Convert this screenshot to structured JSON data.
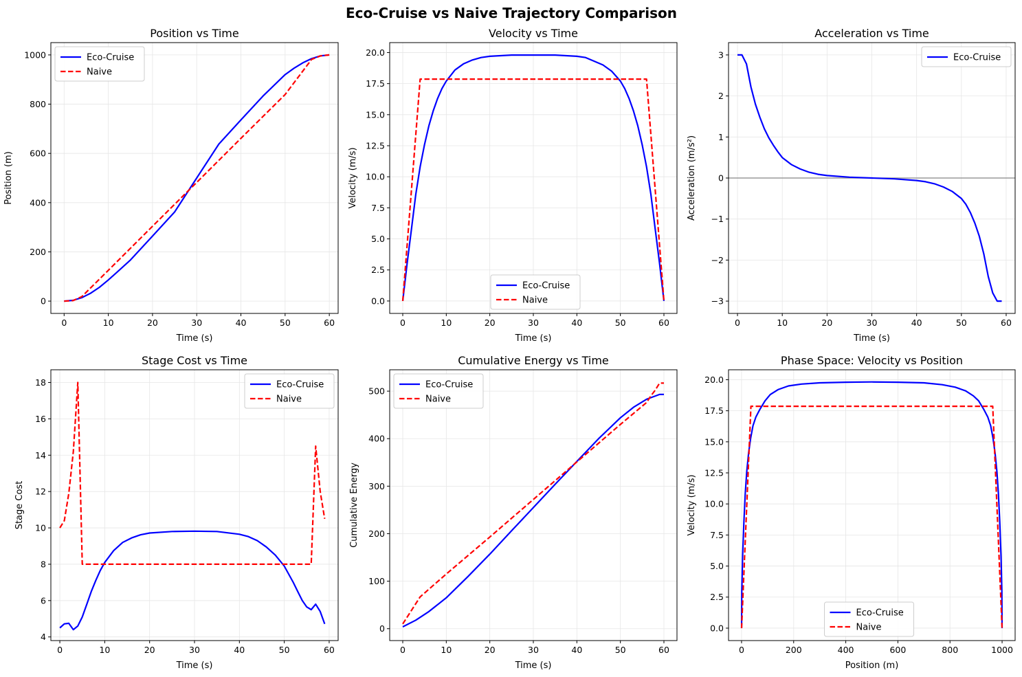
{
  "suptitle": "Eco-Cruise vs Naive Trajectory Comparison",
  "colors": {
    "eco": "#0000ff",
    "naive": "#ff0000",
    "grid": "#e6e6e6",
    "zero_line": "#999999"
  },
  "chart_data": [
    {
      "type": "line",
      "title": "Position vs Time",
      "xlabel": "Time (s)",
      "ylabel": "Position (m)",
      "xlim": [
        -3,
        62
      ],
      "ylim": [
        -50,
        1050
      ],
      "xticks": [
        0,
        10,
        20,
        30,
        40,
        50,
        60
      ],
      "yticks": [
        0,
        200,
        400,
        600,
        800,
        1000
      ],
      "grid": true,
      "legend": "upper left",
      "series": [
        {
          "name": "Eco-Cruise",
          "style": "solid",
          "color": "#0000ff",
          "x": [
            0,
            2,
            4,
            6,
            8,
            10,
            12,
            15,
            20,
            25,
            30,
            35,
            40,
            45,
            50,
            52,
            54,
            56,
            58,
            60
          ],
          "y": [
            0,
            3,
            14,
            32,
            56,
            86,
            118,
            167,
            264,
            362,
            500,
            638,
            736,
            833,
            920,
            946,
            968,
            985,
            996,
            1000
          ]
        },
        {
          "name": "Naive",
          "style": "dashed",
          "color": "#ff0000",
          "x": [
            0,
            2,
            4,
            10,
            20,
            30,
            40,
            50,
            56,
            58,
            60
          ],
          "y": [
            0,
            2,
            18,
            125,
            304,
            482,
            661,
            839,
            982,
            996,
            1000
          ]
        }
      ]
    },
    {
      "type": "line",
      "title": "Velocity vs Time",
      "xlabel": "Time (s)",
      "ylabel": "Velocity (m/s)",
      "xlim": [
        -3,
        63
      ],
      "ylim": [
        -1,
        20.8
      ],
      "xticks": [
        0,
        10,
        20,
        30,
        40,
        50,
        60
      ],
      "yticks": [
        0.0,
        2.5,
        5.0,
        7.5,
        10.0,
        12.5,
        15.0,
        17.5,
        20.0
      ],
      "ytick_labels": [
        "0.0",
        "2.5",
        "5.0",
        "7.5",
        "10.0",
        "12.5",
        "15.0",
        "17.5",
        "20.0"
      ],
      "grid": true,
      "legend": "lower center",
      "series": [
        {
          "name": "Eco-Cruise",
          "style": "solid",
          "color": "#0000ff",
          "x": [
            0,
            1,
            2,
            3,
            4,
            5,
            6,
            7,
            8,
            9,
            10,
            12,
            14,
            16,
            18,
            20,
            25,
            30,
            35,
            40,
            42,
            44,
            46,
            48,
            50,
            51,
            52,
            53,
            54,
            55,
            56,
            57,
            58,
            59,
            60
          ],
          "y": [
            0,
            3.0,
            5.8,
            8.6,
            10.8,
            12.6,
            14.1,
            15.3,
            16.3,
            17.1,
            17.7,
            18.6,
            19.1,
            19.4,
            19.6,
            19.7,
            19.8,
            19.8,
            19.8,
            19.7,
            19.6,
            19.3,
            19.0,
            18.5,
            17.7,
            17.1,
            16.3,
            15.3,
            14.1,
            12.6,
            10.8,
            8.6,
            5.8,
            3.0,
            0
          ]
        },
        {
          "name": "Naive",
          "style": "dashed",
          "color": "#ff0000",
          "x": [
            0,
            4,
            56,
            60
          ],
          "y": [
            0,
            17.86,
            17.86,
            0
          ]
        }
      ]
    },
    {
      "type": "line",
      "title": "Acceleration vs Time",
      "xlabel": "Time (s)",
      "ylabel": "Acceleration (m/s²)",
      "xlim": [
        -2,
        62
      ],
      "ylim": [
        -3.3,
        3.3
      ],
      "xticks": [
        0,
        10,
        20,
        30,
        40,
        50,
        60
      ],
      "yticks": [
        -3,
        -2,
        -1,
        0,
        1,
        2,
        3
      ],
      "ytick_labels": [
        "−3",
        "−2",
        "−1",
        "0",
        "1",
        "2",
        "3"
      ],
      "grid": true,
      "legend": "upper right",
      "zero_line": true,
      "series": [
        {
          "name": "Eco-Cruise",
          "style": "solid",
          "color": "#0000ff",
          "x": [
            0,
            1,
            2,
            3,
            4,
            5,
            6,
            7,
            8,
            9,
            10,
            12,
            14,
            16,
            18,
            20,
            25,
            30,
            35,
            40,
            42,
            44,
            46,
            48,
            50,
            51,
            52,
            53,
            54,
            55,
            56,
            57,
            58,
            59
          ],
          "y": [
            3.0,
            3.0,
            2.78,
            2.22,
            1.8,
            1.48,
            1.2,
            0.98,
            0.8,
            0.64,
            0.5,
            0.33,
            0.22,
            0.14,
            0.09,
            0.06,
            0.02,
            0.0,
            -0.02,
            -0.06,
            -0.09,
            -0.14,
            -0.22,
            -0.33,
            -0.5,
            -0.64,
            -0.84,
            -1.1,
            -1.42,
            -1.85,
            -2.4,
            -2.8,
            -3.0,
            -3.0
          ]
        }
      ]
    },
    {
      "type": "line",
      "title": "Stage Cost vs Time",
      "xlabel": "Time (s)",
      "ylabel": "Stage Cost",
      "xlim": [
        -2,
        62
      ],
      "ylim": [
        3.8,
        18.7
      ],
      "xticks": [
        0,
        10,
        20,
        30,
        40,
        50,
        60
      ],
      "yticks": [
        4,
        6,
        8,
        10,
        12,
        14,
        16,
        18
      ],
      "grid": true,
      "legend": "upper right",
      "series": [
        {
          "name": "Eco-Cruise",
          "style": "solid",
          "color": "#0000ff",
          "x": [
            0,
            1,
            2,
            3,
            4,
            5,
            6,
            7,
            8,
            9,
            10,
            12,
            14,
            16,
            18,
            20,
            25,
            30,
            35,
            40,
            42,
            44,
            46,
            48,
            50,
            52,
            53,
            54,
            55,
            56,
            57,
            58,
            59
          ],
          "y": [
            4.5,
            4.72,
            4.75,
            4.4,
            4.6,
            5.1,
            5.8,
            6.5,
            7.1,
            7.65,
            8.1,
            8.75,
            9.2,
            9.45,
            9.62,
            9.72,
            9.8,
            9.82,
            9.8,
            9.65,
            9.52,
            9.3,
            8.95,
            8.5,
            7.9,
            7.0,
            6.5,
            6.0,
            5.65,
            5.5,
            5.8,
            5.4,
            4.72
          ]
        },
        {
          "name": "Naive",
          "style": "dashed",
          "color": "#ff0000",
          "x": [
            0,
            1,
            2,
            3,
            4,
            5,
            56,
            57,
            58,
            59
          ],
          "y": [
            10.0,
            10.4,
            11.9,
            14.2,
            18.0,
            8.0,
            8.0,
            14.5,
            12.0,
            10.5
          ]
        }
      ]
    },
    {
      "type": "line",
      "title": "Cumulative Energy vs Time",
      "xlabel": "Time (s)",
      "ylabel": "Cumulative Energy",
      "xlim": [
        -3,
        63
      ],
      "ylim": [
        -25,
        545
      ],
      "xticks": [
        0,
        10,
        20,
        30,
        40,
        50,
        60
      ],
      "yticks": [
        0,
        100,
        200,
        300,
        400,
        500
      ],
      "grid": true,
      "legend": "upper left",
      "series": [
        {
          "name": "Eco-Cruise",
          "style": "solid",
          "color": "#0000ff",
          "x": [
            0,
            3,
            6,
            10,
            15,
            20,
            25,
            30,
            35,
            40,
            45,
            50,
            53,
            56,
            59,
            60
          ],
          "y": [
            4,
            18,
            36,
            65,
            110,
            157,
            206,
            255,
            304,
            352,
            400,
            444,
            466,
            483,
            493,
            493
          ]
        },
        {
          "name": "Naive",
          "style": "dashed",
          "color": "#ff0000",
          "x": [
            0,
            4,
            10,
            20,
            30,
            40,
            50,
            56,
            57,
            58,
            59,
            60
          ],
          "y": [
            10,
            67,
            115,
            193,
            272,
            351,
            430,
            476,
            490,
            502,
            517,
            517
          ]
        }
      ]
    },
    {
      "type": "line",
      "title": "Phase Space: Velocity vs Position",
      "xlabel": "Position (m)",
      "ylabel": "Velocity (m/s)",
      "xlim": [
        -50,
        1050
      ],
      "ylim": [
        -1,
        20.8
      ],
      "xticks": [
        0,
        200,
        400,
        600,
        800,
        1000
      ],
      "yticks": [
        0.0,
        2.5,
        5.0,
        7.5,
        10.0,
        12.5,
        15.0,
        17.5,
        20.0
      ],
      "ytick_labels": [
        "0.0",
        "2.5",
        "5.0",
        "7.5",
        "10.0",
        "12.5",
        "15.0",
        "17.5",
        "20.0"
      ],
      "grid": true,
      "legend": "lower center",
      "series": [
        {
          "name": "Eco-Cruise",
          "style": "solid",
          "color": "#0000ff",
          "x": [
            0,
            1,
            4,
            9,
            14,
            20,
            27,
            35,
            44,
            55,
            70,
            90,
            110,
            140,
            180,
            230,
            300,
            400,
            500,
            600,
            700,
            770,
            820,
            860,
            890,
            910,
            930,
            945,
            956,
            965,
            973,
            980,
            986,
            991,
            996,
            999,
            1000
          ],
          "y": [
            0,
            3.0,
            5.8,
            8.6,
            10.8,
            12.6,
            14.1,
            15.3,
            16.3,
            17.0,
            17.6,
            18.3,
            18.8,
            19.2,
            19.5,
            19.65,
            19.75,
            19.8,
            19.82,
            19.8,
            19.75,
            19.6,
            19.4,
            19.1,
            18.7,
            18.3,
            17.6,
            17.0,
            16.3,
            15.3,
            14.1,
            12.6,
            10.8,
            8.6,
            5.8,
            3.0,
            0
          ]
        },
        {
          "name": "Naive",
          "style": "dashed",
          "color": "#ff0000",
          "x": [
            0,
            36,
            964,
            1000
          ],
          "y": [
            0,
            17.86,
            17.86,
            0
          ]
        }
      ]
    }
  ]
}
